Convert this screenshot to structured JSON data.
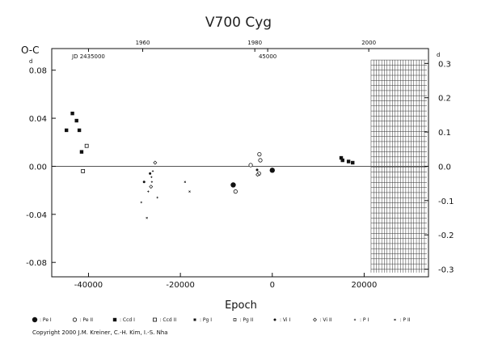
{
  "chart_data": {
    "type": "scatter",
    "title": "V700  Cyg",
    "xlabel": "Epoch",
    "ylabel": "O-C",
    "xlim": [
      -48000,
      34000
    ],
    "ylim": [
      -0.092,
      0.098
    ],
    "y2lim": [
      -0.3223,
      0.3433
    ],
    "x_ticks": [
      {
        "v": -40000,
        "label": "-40000"
      },
      {
        "v": -20000,
        "label": "-20000"
      },
      {
        "v": 0,
        "label": "0"
      },
      {
        "v": 20000,
        "label": "20000"
      }
    ],
    "y_ticks": [
      {
        "v": 0.08,
        "label": "0.08"
      },
      {
        "v": 0.04,
        "label": "0.04"
      },
      {
        "v": 0.0,
        "label": "0.00"
      },
      {
        "v": -0.04,
        "label": "-0.04"
      },
      {
        "v": -0.08,
        "label": "-0.08"
      }
    ],
    "y2_ticks": [
      {
        "v": 0.3,
        "label": "0.3"
      },
      {
        "v": 0.2,
        "label": "0.2"
      },
      {
        "v": 0.1,
        "label": "0.1"
      },
      {
        "v": 0.0,
        "label": "0.0"
      },
      {
        "v": -0.1,
        "label": "-0.1"
      },
      {
        "v": -0.2,
        "label": "-0.2"
      },
      {
        "v": -0.3,
        "label": "-0.3"
      }
    ],
    "year_ticks": [
      {
        "x": -28200,
        "label": "1960"
      },
      {
        "x": -3800,
        "label": "1980"
      },
      {
        "x": 21000,
        "label": "2000"
      }
    ],
    "top_labels": [
      {
        "x": -40000,
        "label": "JD 2435000"
      },
      {
        "x": -1000,
        "label": "45000"
      }
    ],
    "ylabel_corner": "d",
    "y2label_corner": "d",
    "zero_line": true,
    "future_hatch_from_x": 21500,
    "series": [
      {
        "name": ": Pe I",
        "marker": "circle-filled",
        "points": [
          [
            0,
            -0.0033
          ],
          [
            -8500,
            -0.0155
          ]
        ]
      },
      {
        "name": ": Pe II",
        "marker": "circle-open",
        "points": [
          [
            -8000,
            -0.021
          ],
          [
            -2600,
            0.005
          ],
          [
            -2800,
            0.01
          ],
          [
            -2900,
            -0.006
          ],
          [
            -4700,
            0.001
          ]
        ]
      },
      {
        "name": ": Ccd I",
        "marker": "square-filled",
        "points": [
          [
            -44800,
            0.03
          ],
          [
            -43500,
            0.044
          ],
          [
            -42600,
            0.038
          ],
          [
            -42000,
            0.03
          ],
          [
            -41500,
            0.012
          ],
          [
            15000,
            0.007
          ],
          [
            15300,
            0.005
          ],
          [
            16600,
            0.004
          ],
          [
            17500,
            0.003
          ]
        ]
      },
      {
        "name": ": Ccd II",
        "marker": "square-open",
        "points": [
          [
            -40400,
            0.017
          ],
          [
            -41200,
            -0.004
          ]
        ]
      },
      {
        "name": ": Pg I",
        "marker": "square-small-filled",
        "points": []
      },
      {
        "name": ": Pg II",
        "marker": "square-small-open",
        "points": []
      },
      {
        "name": ": Vi I",
        "marker": "dot-filled",
        "points": [
          [
            -27900,
            -0.013
          ],
          [
            -26600,
            -0.006
          ],
          [
            -3300,
            -0.003
          ]
        ]
      },
      {
        "name": ": Vi II",
        "marker": "diamond-open",
        "points": [
          [
            -25500,
            0.003
          ],
          [
            -26400,
            -0.017
          ],
          [
            -3200,
            -0.007
          ]
        ]
      },
      {
        "name": ": P I",
        "marker": "plus",
        "points": [
          [
            -27000,
            -0.021
          ],
          [
            -26200,
            -0.013
          ],
          [
            -26300,
            -0.009
          ],
          [
            -26000,
            -0.004
          ],
          [
            -25000,
            -0.026
          ],
          [
            -28500,
            -0.03
          ]
        ]
      },
      {
        "name": ": P II",
        "marker": "x-small",
        "points": [
          [
            -27300,
            -0.043
          ],
          [
            -19000,
            -0.013
          ],
          [
            -18000,
            -0.021
          ]
        ]
      }
    ]
  },
  "copyright": "Copyright 2000 J.M. Kreiner, C.-H. Kim, I.-S. Nha"
}
